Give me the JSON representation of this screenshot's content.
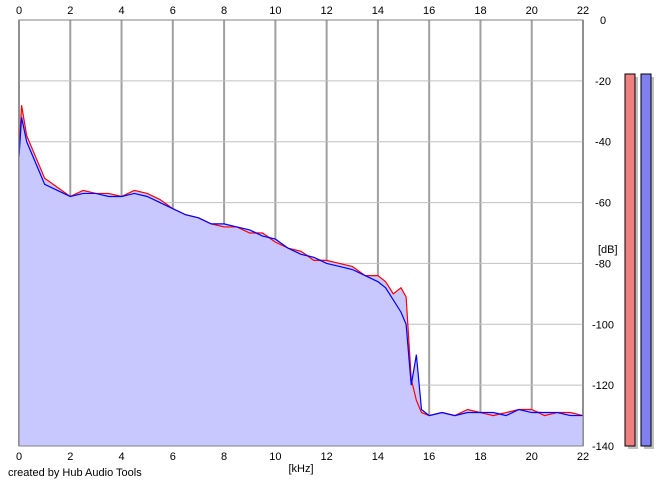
{
  "chart_data": {
    "type": "line",
    "xlabel": "[kHz]",
    "ylabel": "[dB]",
    "xlim": [
      0,
      22
    ],
    "ylim": [
      -140,
      0
    ],
    "x_ticks": [
      0,
      2,
      4,
      6,
      8,
      10,
      12,
      14,
      16,
      18,
      20,
      22
    ],
    "y_ticks": [
      0,
      -20,
      -40,
      -60,
      -80,
      -100,
      -120,
      -140
    ],
    "x_tick_labels": [
      "0",
      "2",
      "4",
      "6",
      "8",
      "10",
      "12",
      "14",
      "16",
      "18",
      "20",
      "22"
    ],
    "y_tick_labels": [
      "0",
      "-20",
      "-40",
      "-60",
      "-80",
      "-100",
      "-120",
      "-140"
    ],
    "grid": true,
    "fill_color": "#c8c8ff",
    "series": [
      {
        "color": "#ff0000",
        "x": [
          0,
          0.1,
          0.3,
          0.5,
          0.8,
          1.0,
          1.5,
          2.0,
          2.5,
          3.0,
          3.5,
          4.0,
          4.5,
          5.0,
          5.5,
          6.0,
          6.5,
          7.0,
          7.5,
          8.0,
          8.5,
          9.0,
          9.5,
          10.0,
          10.5,
          11.0,
          11.5,
          12.0,
          12.5,
          13.0,
          13.5,
          14.0,
          14.3,
          14.6,
          14.9,
          15.1,
          15.3,
          15.5,
          15.7,
          16.0,
          16.5,
          17.0,
          17.5,
          18.0,
          18.5,
          19.0,
          19.5,
          20.0,
          20.5,
          21.0,
          21.5,
          22.0
        ],
        "y": [
          -44,
          -28,
          -38,
          -42,
          -48,
          -52,
          -55,
          -58,
          -56,
          -57,
          -57,
          -58,
          -56,
          -57,
          -59,
          -62,
          -64,
          -65,
          -67,
          -68,
          -68,
          -70,
          -70,
          -73,
          -75,
          -76,
          -79,
          -79,
          -80,
          -81,
          -84,
          -84,
          -86,
          -90,
          -88,
          -91,
          -118,
          -125,
          -129,
          -130,
          -129,
          -130,
          -128,
          -129,
          -130,
          -129,
          -128,
          -128,
          -130,
          -129,
          -129,
          -130
        ]
      },
      {
        "color": "#0000ff",
        "x": [
          0,
          0.1,
          0.3,
          0.5,
          0.8,
          1.0,
          1.5,
          2.0,
          2.5,
          3.0,
          3.5,
          4.0,
          4.5,
          5.0,
          5.5,
          6.0,
          6.5,
          7.0,
          7.5,
          8.0,
          8.5,
          9.0,
          9.5,
          10.0,
          10.5,
          11.0,
          11.5,
          12.0,
          12.5,
          13.0,
          13.5,
          14.0,
          14.3,
          14.6,
          14.9,
          15.1,
          15.3,
          15.5,
          15.7,
          16.0,
          16.5,
          17.0,
          17.5,
          18.0,
          18.5,
          19.0,
          19.5,
          20.0,
          20.5,
          21.0,
          21.5,
          22.0
        ],
        "y": [
          -45,
          -32,
          -40,
          -44,
          -50,
          -54,
          -56,
          -58,
          -57,
          -57,
          -58,
          -58,
          -57,
          -58,
          -60,
          -62,
          -64,
          -65,
          -67,
          -67,
          -68,
          -69,
          -71,
          -72,
          -75,
          -77,
          -78,
          -80,
          -81,
          -82,
          -84,
          -86,
          -88,
          -92,
          -96,
          -100,
          -120,
          -110,
          -128,
          -130,
          -129,
          -130,
          -129,
          -129,
          -129,
          -130,
          -128,
          -129,
          -129,
          -129,
          -130,
          -130
        ]
      }
    ]
  },
  "meters": [
    {
      "channel": "left",
      "color": "#f08080",
      "fill": 1.0
    },
    {
      "channel": "right",
      "color": "#8080f0",
      "fill": 1.0
    }
  ],
  "credit": "created by Hub Audio Tools"
}
